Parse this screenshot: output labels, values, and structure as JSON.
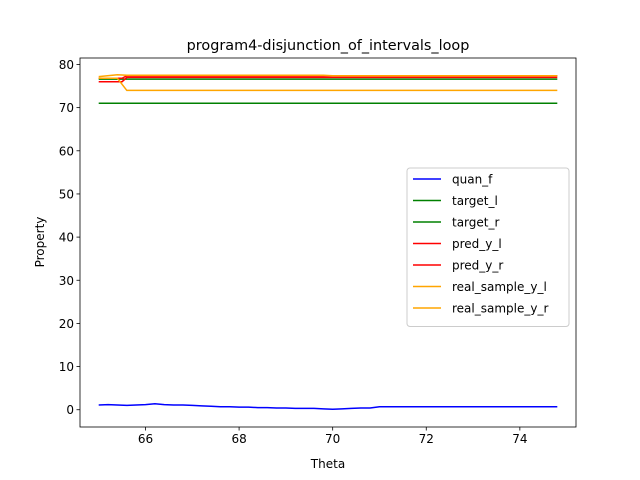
{
  "chart_data": {
    "type": "line",
    "title": "program4-disjunction_of_intervals_loop",
    "xlabel": "Theta",
    "ylabel": "Property",
    "xlim": [
      64.6,
      75.2
    ],
    "ylim": [
      -4,
      81.5
    ],
    "xticks": [
      66,
      68,
      70,
      72,
      74
    ],
    "yticks": [
      0,
      10,
      20,
      30,
      40,
      50,
      60,
      70,
      80
    ],
    "grid": false,
    "legend_position": "center-right",
    "series": [
      {
        "name": "quan_f",
        "color": "#0000ff",
        "x": [
          65.0,
          65.2,
          65.4,
          65.6,
          65.8,
          66.0,
          66.2,
          66.4,
          66.6,
          66.8,
          67.0,
          67.2,
          67.4,
          67.6,
          67.8,
          68.0,
          68.2,
          68.4,
          68.6,
          68.8,
          69.0,
          69.2,
          69.4,
          69.6,
          69.8,
          70.0,
          70.2,
          70.4,
          70.6,
          70.8,
          71.0,
          71.2,
          71.6,
          72.0,
          72.5,
          73.0,
          73.5,
          74.0,
          74.8
        ],
        "y": [
          1.1,
          1.2,
          1.1,
          1.0,
          1.1,
          1.2,
          1.4,
          1.2,
          1.1,
          1.1,
          1.0,
          0.9,
          0.8,
          0.7,
          0.7,
          0.6,
          0.6,
          0.5,
          0.5,
          0.4,
          0.4,
          0.3,
          0.3,
          0.3,
          0.2,
          0.1,
          0.2,
          0.3,
          0.4,
          0.4,
          0.7,
          0.7,
          0.7,
          0.7,
          0.7,
          0.7,
          0.7,
          0.7,
          0.7
        ]
      },
      {
        "name": "target_l",
        "color": "#008000",
        "x": [
          65.0,
          74.8
        ],
        "y": [
          71,
          71
        ]
      },
      {
        "name": "target_r",
        "color": "#008000",
        "x": [
          65.0,
          74.8
        ],
        "y": [
          76.6,
          76.6
        ]
      },
      {
        "name": "pred_y_l",
        "color": "#ff0000",
        "x": [
          65.0,
          65.5,
          65.6,
          66.0,
          74.8
        ],
        "y": [
          76.0,
          76.0,
          77.0,
          77.0,
          77.0
        ]
      },
      {
        "name": "pred_y_r",
        "color": "#ff0000",
        "x": [
          65.0,
          65.5,
          65.6,
          66.0,
          74.8
        ],
        "y": [
          76.8,
          76.8,
          77.4,
          77.4,
          77.4
        ]
      },
      {
        "name": "real_sample_y_l",
        "color": "#ffa500",
        "x": [
          65.0,
          65.4,
          65.6,
          74.8
        ],
        "y": [
          76.8,
          76.8,
          74.0,
          74.0
        ]
      },
      {
        "name": "real_sample_y_r",
        "color": "#ffa500",
        "x": [
          65.0,
          65.4,
          65.6,
          69.8,
          70.0,
          74.8
        ],
        "y": [
          77.2,
          77.6,
          77.5,
          77.5,
          77.4,
          77.4
        ]
      }
    ]
  }
}
